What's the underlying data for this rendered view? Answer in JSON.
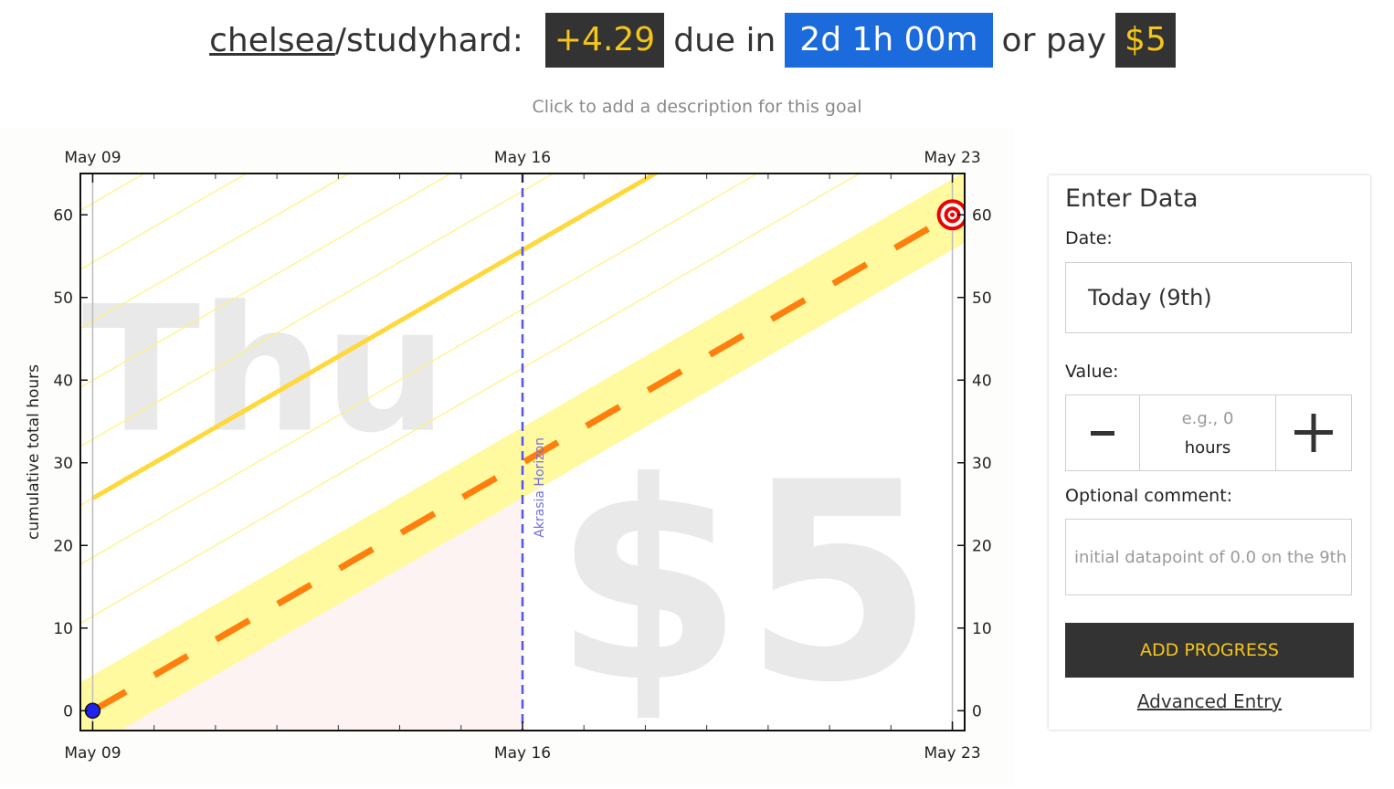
{
  "header": {
    "user": "chelsea",
    "separator": "/",
    "goal": "studyhard",
    "colon": ":",
    "safety_buffer": "+4.29",
    "due_label": "due in",
    "countdown": "2d 1h 00m",
    "pay_label": "or pay",
    "pledge": "$5"
  },
  "description_placeholder": "Click to add a description for this goal",
  "chart_data": {
    "type": "line",
    "x_tick_labels": [
      "May 09",
      "May 16",
      "May 23"
    ],
    "y_ticks": [
      0,
      10,
      20,
      30,
      40,
      50,
      60
    ],
    "ylabel": "cumulative total hours",
    "ylim": [
      -2.4,
      65
    ],
    "xlim_days": [
      -0.2,
      14.2
    ],
    "akrasia_horizon_label": "Akrasia Horizon",
    "akrasia_horizon_day": 7,
    "watermark_day": "Thu",
    "watermark_pledge": "$5",
    "road": {
      "start_day": 0,
      "start_value": 0,
      "rate_per_day": 4.29,
      "end_day": 14,
      "end_value": 60
    },
    "safe_band_width": 4.29,
    "upper_line_offset": 25.7,
    "datapoints": [
      {
        "day": 0,
        "value": 0
      }
    ],
    "goal_target": {
      "day": 14,
      "value": 60
    },
    "colors": {
      "road_dash": "#ff7f0e",
      "yellow_band": "#fffaa0",
      "upper_line": "#ffd83a",
      "stripe": "#fff27a",
      "horizon": "#5555ee",
      "datapoint": "#2222ee",
      "target": "#ee0000"
    }
  },
  "entry_panel": {
    "title": "Enter Data",
    "date_label": "Date:",
    "date_value": "Today (9th)",
    "value_label": "Value:",
    "value_placeholder": "e.g., 0",
    "value_unit": "hours",
    "minus_icon": "minus-icon",
    "plus_icon": "plus-icon",
    "comment_label": "Optional comment:",
    "comment_placeholder": "initial datapoint of 0.0 on the 9th",
    "submit_label": "ADD PROGRESS",
    "advanced_link": "Advanced Entry"
  }
}
